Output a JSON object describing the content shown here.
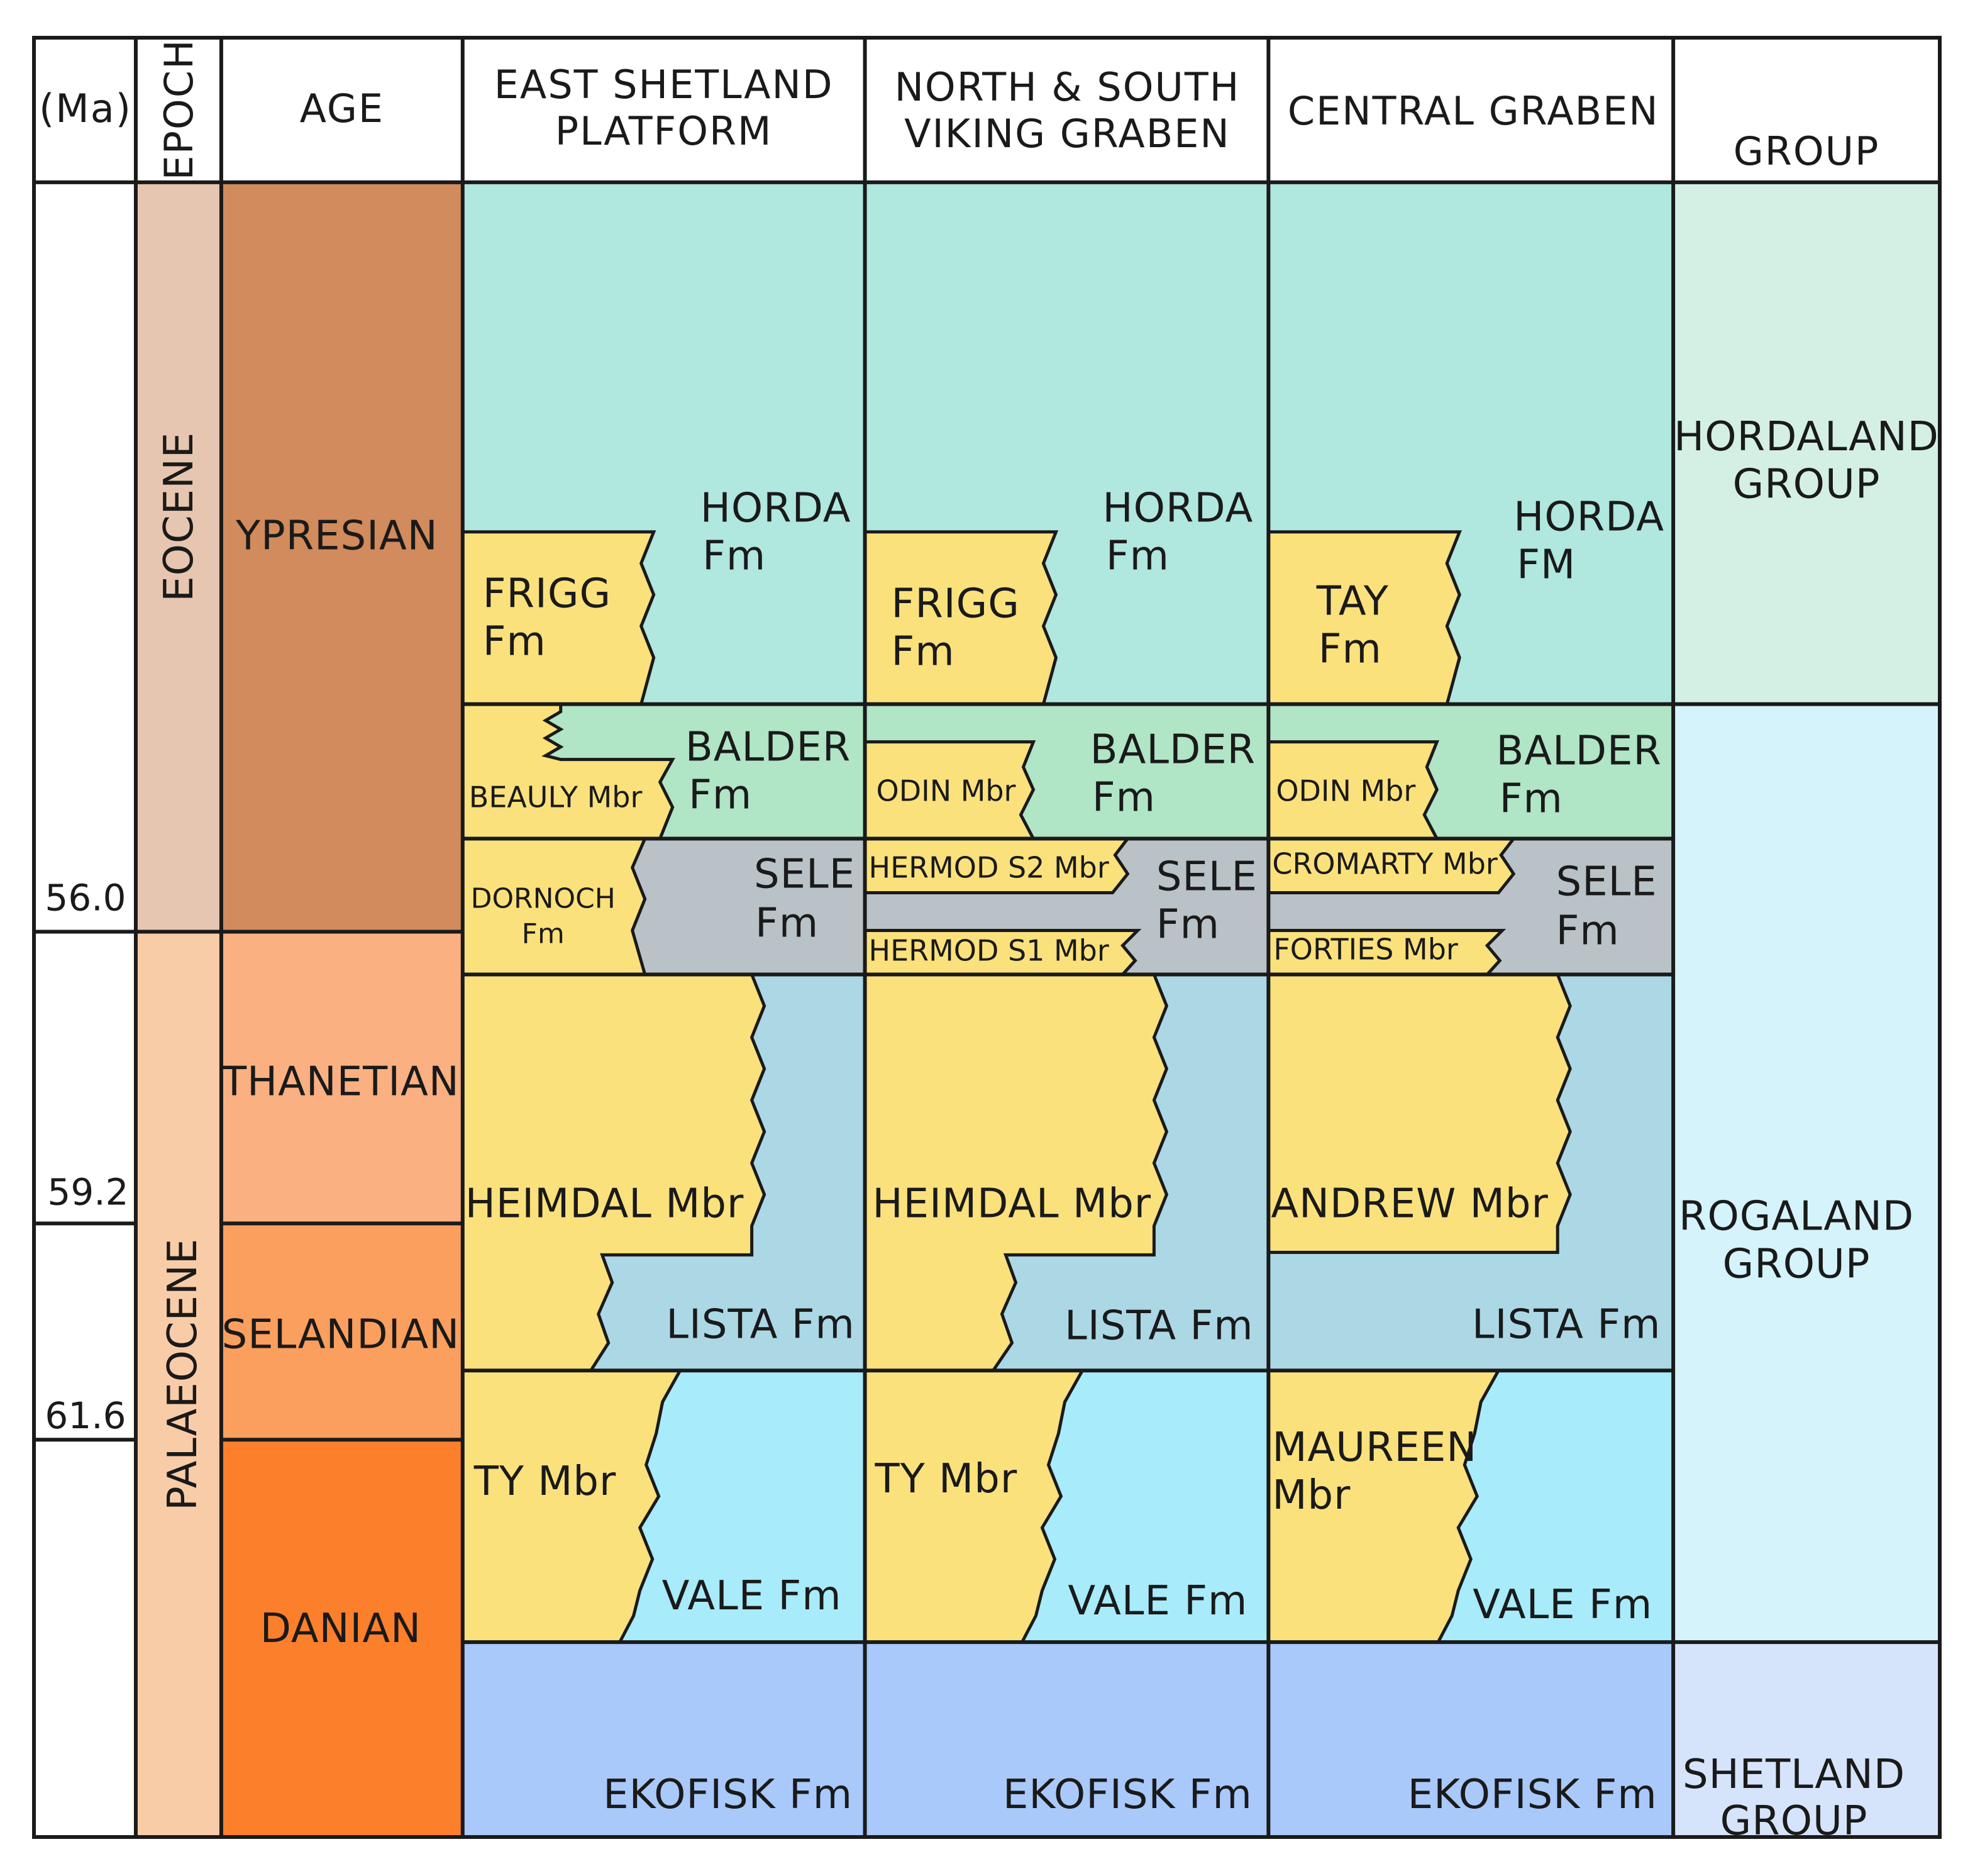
{
  "headers": {
    "ma": "(Ma)",
    "epoch": "EPOCH",
    "age": "AGE",
    "col1_line1": "EAST SHETLAND",
    "col1_line2": "PLATFORM",
    "col2_line1": "NORTH & SOUTH",
    "col2_line2": "VIKING GRABEN",
    "col3": "CENTRAL GRABEN",
    "group": "GROUP"
  },
  "ages_ma": {
    "a": "56.0",
    "b": "59.2",
    "c": "61.6"
  },
  "epochs": {
    "eocene": "EOCENE",
    "palaeocene": "PALAEOCENE"
  },
  "stages": {
    "ypresian": "YPRESIAN",
    "thanetian": "THANETIAN",
    "selandian": "SELANDIAN",
    "danian": "DANIAN"
  },
  "groups": {
    "hordaland_1": "HORDALAND",
    "hordaland_2": "GROUP",
    "rogaland_1": "ROGALAND",
    "rogaland_2": "GROUP",
    "shetland_1": "SHETLAND",
    "shetland_2": "GROUP"
  },
  "units": {
    "c1": {
      "horda_1": "HORDA",
      "horda_2": "Fm",
      "frigg_1": "FRIGG",
      "frigg_2": "Fm",
      "balder_1": "BALDER",
      "balder_2": "Fm",
      "beauly": "BEAULY Mbr",
      "sele_1": "SELE",
      "sele_2": "Fm",
      "dornoch_1": "DORNOCH",
      "dornoch_2": "Fm",
      "heimdal": "HEIMDAL Mbr",
      "lista": "LISTA Fm",
      "ty": "TY Mbr",
      "vale": "VALE Fm",
      "ekofisk": "EKOFISK Fm"
    },
    "c2": {
      "horda_1": "HORDA",
      "horda_2": "Fm",
      "frigg_1": "FRIGG",
      "frigg_2": "Fm",
      "balder_1": "BALDER",
      "balder_2": "Fm",
      "odin": "ODIN Mbr",
      "hermod_s2": "HERMOD S2 Mbr",
      "sele_1": "SELE",
      "sele_2": "Fm",
      "hermod_s1": "HERMOD S1 Mbr",
      "heimdal": "HEIMDAL Mbr",
      "lista": "LISTA Fm",
      "ty": "TY Mbr",
      "vale": "VALE Fm",
      "ekofisk": "EKOFISK Fm"
    },
    "c3": {
      "horda_1": "HORDA",
      "horda_2": "FM",
      "tay_1": "TAY",
      "tay_2": "Fm",
      "balder_1": "BALDER",
      "balder_2": "Fm",
      "odin": "ODIN Mbr",
      "cromarty": "CROMARTY Mbr",
      "sele_1": "SELE",
      "sele_2": "Fm",
      "forties": "FORTIES Mbr",
      "andrew": "ANDREW Mbr",
      "lista": "LISTA Fm",
      "maureen_1": "MAUREEN",
      "maureen_2": "Mbr",
      "vale": "VALE Fm",
      "ekofisk": "EKOFISK Fm"
    }
  },
  "colors": {
    "eocene": "#e6c6b0",
    "palaeocene": "#f9cca8",
    "ypresian": "#d18b5c",
    "thanetian": "#fbb081",
    "selandian": "#fb9f5e",
    "danian": "#fc7f2c",
    "horda": "#b0e7de",
    "balder": "#b0e5c6",
    "sele": "#b9c2c6",
    "lista": "#acd8e6",
    "vale": "#a8ebfb",
    "ekofisk": "#a9c9fb",
    "sand": "#fbe17c",
    "hordaland": "#d4f0e4",
    "rogaland": "#d5f3fb",
    "shetland": "#d6e4fb"
  }
}
